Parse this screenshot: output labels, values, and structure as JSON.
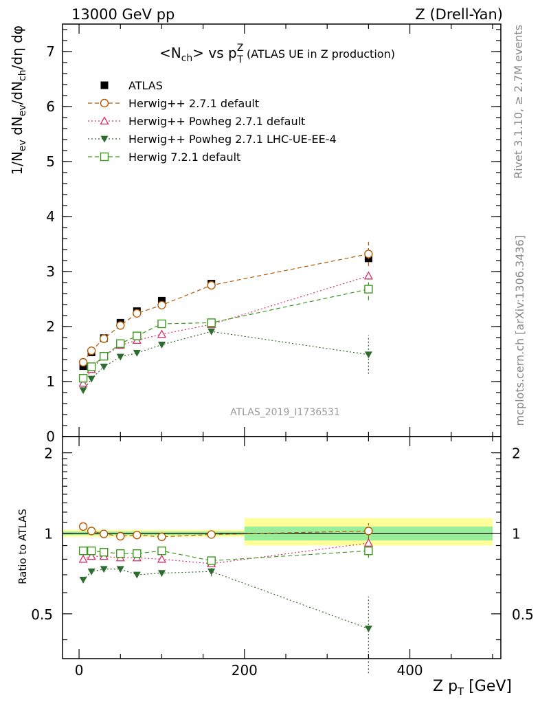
{
  "header": {
    "left": "13000 GeV pp",
    "right": "Z (Drell-Yan)"
  },
  "side_labels": {
    "rivet": "Rivet 3.1.10, ≥ 2.7M events",
    "mcplots": "mcplots.cern.ch [arXiv:1306.3436]"
  },
  "chart_data": [
    {
      "type": "scatter",
      "panel": "main",
      "title": {
        "pre": "<N",
        "sub": "ch",
        "mid": "> vs p",
        "sup": "Z",
        "sub2": "T",
        "post": " (ATLAS UE in Z production)"
      },
      "watermark": "ATLAS_2019_I1736531",
      "ylabel": "1/N_ev dN_ev/dN_ch/dη dφ",
      "xlim": [
        -20,
        510
      ],
      "ylim": [
        0,
        7.5
      ],
      "yticks": [
        0,
        1,
        2,
        3,
        4,
        5,
        6,
        7
      ],
      "legend_position": "top-left",
      "x": [
        5,
        15,
        30,
        50,
        70,
        100,
        160,
        350
      ],
      "series": [
        {
          "name": "ATLAS",
          "color": "#000000",
          "marker": "square-filled",
          "line": "none",
          "values": [
            1.28,
            1.53,
            1.79,
            2.07,
            2.28,
            2.47,
            2.78,
            3.24
          ]
        },
        {
          "name": "Herwig++ 2.7.1 default",
          "color": "#b35900",
          "marker": "circle-open",
          "line": "dashed",
          "values": [
            1.35,
            1.56,
            1.78,
            2.02,
            2.24,
            2.39,
            2.75,
            3.32
          ],
          "err": [
            0,
            0,
            0,
            0,
            0,
            0,
            0,
            0.22
          ]
        },
        {
          "name": "Herwig++ Powheg 2.7.1 default",
          "color": "#d62d6b",
          "marker": "triangle-open",
          "line": "dotted",
          "values": [
            0.97,
            1.22,
            1.46,
            1.66,
            1.75,
            1.86,
            2.04,
            2.92
          ],
          "err": [
            0,
            0,
            0,
            0,
            0,
            0,
            0,
            0.05
          ]
        },
        {
          "name": "Herwig++ Powheg 2.7.1 LHC-UE-EE-4",
          "color": "#2e6b2e",
          "marker": "triangle-down-filled",
          "line": "dotted",
          "values": [
            0.84,
            1.05,
            1.27,
            1.45,
            1.52,
            1.67,
            1.91,
            1.49
          ],
          "err": [
            0,
            0,
            0,
            0,
            0,
            0,
            0.05,
            0.35
          ]
        },
        {
          "name": "Herwig 7.2.1 default",
          "color": "#3a9a1a",
          "marker": "square-open",
          "line": "dashed",
          "values": [
            1.06,
            1.27,
            1.46,
            1.69,
            1.83,
            2.05,
            2.07,
            2.68
          ],
          "err": [
            0,
            0,
            0,
            0,
            0,
            0,
            0,
            0.2
          ]
        }
      ]
    },
    {
      "type": "scatter",
      "panel": "ratio",
      "ylabel": "Ratio to ATLAS",
      "xlabel": "Z p_T [GeV]",
      "xlim": [
        -20,
        510
      ],
      "ylim": [
        0.34,
        2.3
      ],
      "yticks": [
        0.5,
        1,
        2
      ],
      "xticks": [
        0,
        200,
        400
      ],
      "scale": "log",
      "bands": [
        {
          "x0": -20,
          "x1": 200,
          "inner": [
            0.985,
            1.015
          ],
          "outer": [
            0.97,
            1.03
          ]
        },
        {
          "x0": 200,
          "x1": 500,
          "inner": [
            0.94,
            1.06
          ],
          "outer": [
            0.9,
            1.14
          ]
        }
      ],
      "x": [
        5,
        15,
        30,
        50,
        70,
        100,
        160,
        350
      ],
      "series": [
        {
          "name": "Herwig++ 2.7.1 default",
          "values": [
            1.06,
            1.02,
            0.995,
            0.975,
            0.985,
            0.97,
            0.99,
            1.02
          ],
          "err": [
            0,
            0,
            0,
            0,
            0,
            0,
            0,
            0.07
          ]
        },
        {
          "name": "Herwig++ Powheg 2.7.1 default",
          "values": [
            0.8,
            0.82,
            0.82,
            0.81,
            0.81,
            0.8,
            0.77,
            0.92
          ],
          "err": [
            0,
            0,
            0,
            0,
            0,
            0,
            0,
            0.02
          ]
        },
        {
          "name": "Herwig++ Powheg 2.7.1 LHC-UE-EE-4",
          "values": [
            0.67,
            0.72,
            0.735,
            0.735,
            0.7,
            0.71,
            0.72,
            0.44
          ],
          "err": [
            0,
            0,
            0,
            0,
            0,
            0,
            0.03,
            0.14
          ]
        },
        {
          "name": "Herwig 7.2.1 default",
          "values": [
            0.86,
            0.86,
            0.85,
            0.84,
            0.84,
            0.86,
            0.79,
            0.86
          ],
          "err": [
            0,
            0,
            0,
            0,
            0,
            0,
            0,
            0.05
          ]
        }
      ]
    }
  ]
}
